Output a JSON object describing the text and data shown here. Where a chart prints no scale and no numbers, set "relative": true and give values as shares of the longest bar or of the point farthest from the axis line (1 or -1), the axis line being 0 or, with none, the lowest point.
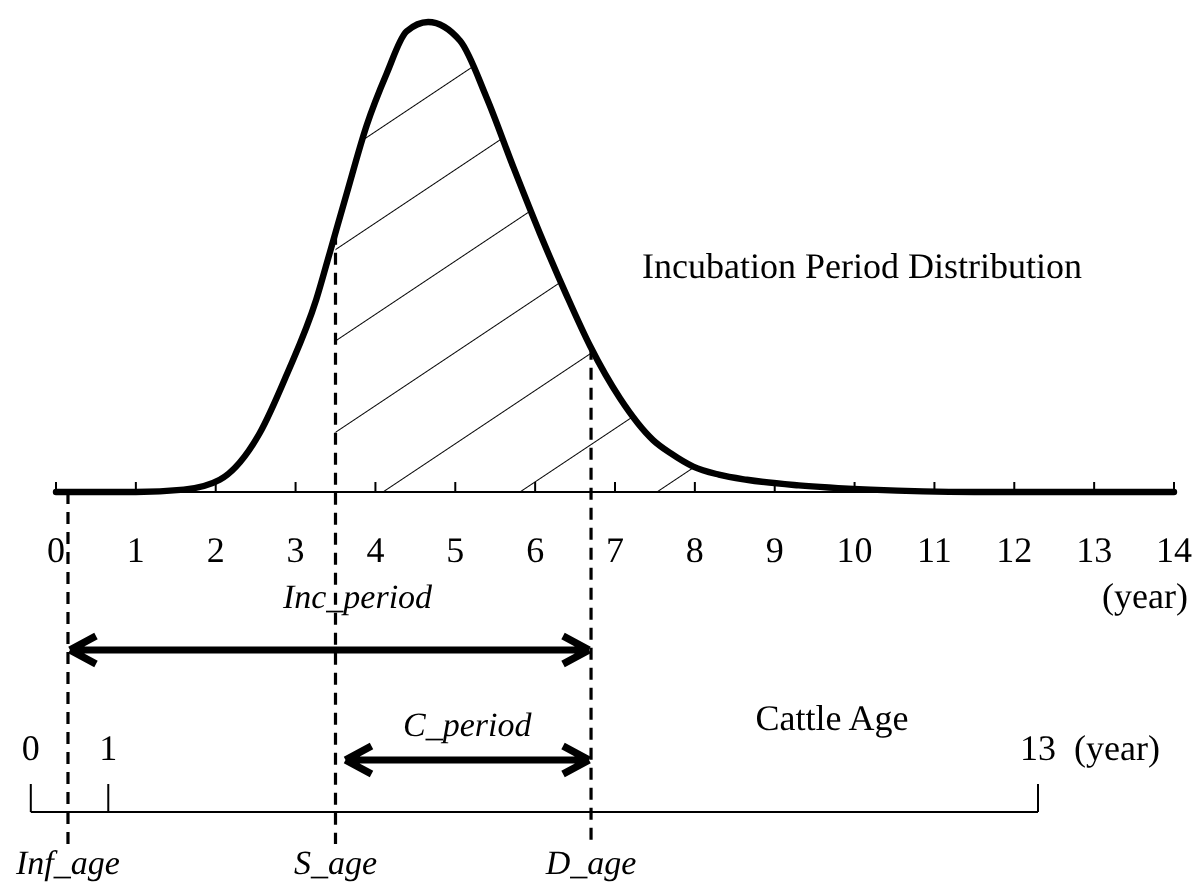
{
  "chart_data": {
    "type": "line",
    "relative": true,
    "xlim": [
      0,
      14
    ],
    "xticks": [
      0,
      1,
      2,
      3,
      4,
      5,
      6,
      7,
      8,
      9,
      10,
      11,
      12,
      13,
      14
    ],
    "xlabel": "(year)",
    "x2lim": [
      0,
      13
    ],
    "x2ticks": [
      0,
      1,
      13
    ],
    "x2label": "(year)",
    "series": [
      {
        "name": "Incubation Period Distribution",
        "color": "#000000",
        "x": [
          0,
          1,
          1.6,
          2.05,
          2.55,
          2.89,
          3.26,
          3.43,
          3.64,
          3.89,
          4.14,
          4.39,
          4.66,
          5.06,
          5.39,
          5.73,
          6.06,
          6.39,
          6.69,
          7.06,
          7.48,
          7.7,
          7.98,
          8.3,
          8.65,
          9.3,
          10.2,
          11.5,
          14
        ],
        "values": [
          0,
          0,
          0.005,
          0.026,
          0.125,
          0.25,
          0.41,
          0.51,
          0.635,
          0.78,
          0.89,
          0.98,
          1,
          0.96,
          0.84,
          0.69,
          0.55,
          0.42,
          0.31,
          0.2,
          0.11,
          0.082,
          0.054,
          0.037,
          0.026,
          0.014,
          0.005,
          0,
          0
        ]
      },
      {
        "type": "area",
        "color": "#000000",
        "x": [
          3.5,
          3.64,
          3.89,
          4.14,
          4.39,
          4.66,
          5.06,
          5.39,
          5.73,
          6.06,
          6.39,
          6.69,
          7.06,
          7.48,
          7.7,
          7.98
        ],
        "values": [
          0.55,
          0.635,
          0.78,
          0.89,
          0.98,
          1,
          0.96,
          0.84,
          0.69,
          0.55,
          0.42,
          0.31,
          0.2,
          0.11,
          0.082,
          0.054
        ]
      }
    ],
    "ref_lines": [
      {
        "axis": "x",
        "value": 0.15,
        "label": "Inf_age",
        "line_style": "dashed"
      },
      {
        "axis": "x",
        "value": 3.5,
        "label": "S_age",
        "line_style": "dashed"
      },
      {
        "axis": "x",
        "value": 6.7,
        "label": "D_age",
        "line_style": "dashed"
      }
    ],
    "annotations": [
      "Inc_period",
      "C_period",
      "Cattle Age"
    ]
  }
}
